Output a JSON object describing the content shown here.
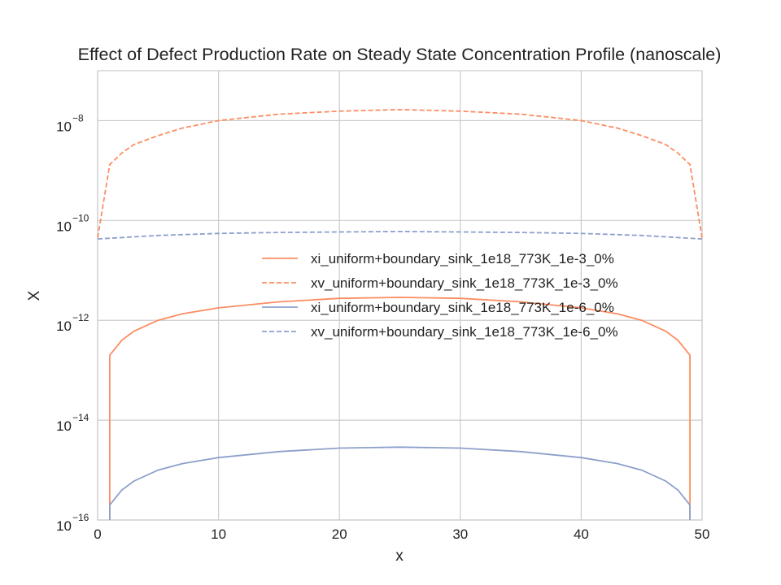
{
  "chart_data": {
    "type": "line",
    "title": "Effect of Defect Production Rate on Steady State Concentration Profile (nanoscale)",
    "xlabel": "x",
    "ylabel": "X",
    "xlim": [
      0,
      50
    ],
    "ylim_log10": [
      -16,
      -7
    ],
    "yscale": "log",
    "grid": true,
    "legend_position": "center-right",
    "x_ticks": [
      "0",
      "10",
      "20",
      "30",
      "40",
      "50"
    ],
    "y_ticks": [
      {
        "base": "10",
        "exp": "−16"
      },
      {
        "base": "10",
        "exp": "−14"
      },
      {
        "base": "10",
        "exp": "−12"
      },
      {
        "base": "10",
        "exp": "−10"
      },
      {
        "base": "10",
        "exp": "−8"
      }
    ],
    "series": [
      {
        "name": "xi_uniform+boundary_sink_1e18_773K_1e-3_0%",
        "color": "#fc8d62",
        "dash": "solid",
        "points": [
          [
            1,
            -16
          ],
          [
            1,
            -12.7
          ],
          [
            2,
            -12.4
          ],
          [
            3,
            -12.22
          ],
          [
            5,
            -12.0
          ],
          [
            7,
            -11.87
          ],
          [
            10,
            -11.75
          ],
          [
            15,
            -11.63
          ],
          [
            20,
            -11.56
          ],
          [
            25,
            -11.54
          ],
          [
            30,
            -11.56
          ],
          [
            35,
            -11.63
          ],
          [
            40,
            -11.75
          ],
          [
            43,
            -11.87
          ],
          [
            45,
            -12.0
          ],
          [
            47,
            -12.22
          ],
          [
            48,
            -12.4
          ],
          [
            49,
            -12.7
          ],
          [
            49,
            -16
          ]
        ]
      },
      {
        "name": "xv_uniform+boundary_sink_1e18_773K_1e-3_0%",
        "color": "#fc8d62",
        "dash": "dashed",
        "points": [
          [
            0,
            -10.35
          ],
          [
            1,
            -8.88
          ],
          [
            2,
            -8.65
          ],
          [
            3,
            -8.48
          ],
          [
            5,
            -8.3
          ],
          [
            7,
            -8.15
          ],
          [
            10,
            -8.0
          ],
          [
            15,
            -7.87
          ],
          [
            20,
            -7.81
          ],
          [
            25,
            -7.78
          ],
          [
            30,
            -7.81
          ],
          [
            35,
            -7.87
          ],
          [
            40,
            -8.0
          ],
          [
            43,
            -8.15
          ],
          [
            45,
            -8.3
          ],
          [
            47,
            -8.48
          ],
          [
            48,
            -8.65
          ],
          [
            49,
            -8.88
          ],
          [
            50,
            -10.35
          ]
        ]
      },
      {
        "name": "xi_uniform+boundary_sink_1e18_773K_1e-6_0%",
        "color": "#8da0cb",
        "dash": "solid",
        "points": [
          [
            1,
            -16
          ],
          [
            1,
            -15.7
          ],
          [
            2,
            -15.4
          ],
          [
            3,
            -15.22
          ],
          [
            5,
            -15.0
          ],
          [
            7,
            -14.87
          ],
          [
            10,
            -14.75
          ],
          [
            15,
            -14.63
          ],
          [
            20,
            -14.56
          ],
          [
            25,
            -14.54
          ],
          [
            30,
            -14.56
          ],
          [
            35,
            -14.63
          ],
          [
            40,
            -14.75
          ],
          [
            43,
            -14.87
          ],
          [
            45,
            -15.0
          ],
          [
            47,
            -15.22
          ],
          [
            48,
            -15.4
          ],
          [
            49,
            -15.7
          ],
          [
            49,
            -16
          ]
        ]
      },
      {
        "name": "xv_uniform+boundary_sink_1e18_773K_1e-6_0%",
        "color": "#8da0cb",
        "dash": "dashed",
        "points": [
          [
            0,
            -10.37
          ],
          [
            5,
            -10.3
          ],
          [
            10,
            -10.26
          ],
          [
            15,
            -10.24
          ],
          [
            20,
            -10.23
          ],
          [
            25,
            -10.22
          ],
          [
            30,
            -10.23
          ],
          [
            35,
            -10.24
          ],
          [
            40,
            -10.26
          ],
          [
            45,
            -10.3
          ],
          [
            50,
            -10.37
          ]
        ]
      }
    ]
  }
}
